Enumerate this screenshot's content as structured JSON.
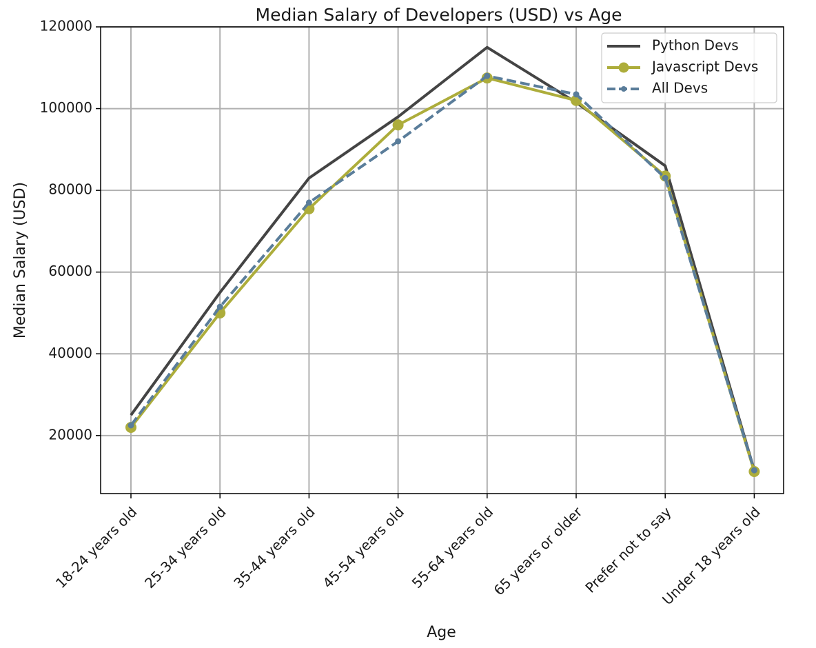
{
  "chart_data": {
    "type": "line",
    "title": "Median Salary of Developers (USD) vs Age",
    "xlabel": "Age",
    "ylabel": "Median Salary (USD)",
    "categories": [
      "18-24 years old",
      "25-34 years old",
      "35-44 years old",
      "45-54 years old",
      "55-64 years old",
      "65 years or older",
      "Prefer not to say",
      "Under 18 years old"
    ],
    "ylim": [
      5800,
      120000
    ],
    "yticks": [
      20000,
      40000,
      60000,
      80000,
      100000,
      120000
    ],
    "grid": true,
    "legend_position": "top-right",
    "series": [
      {
        "name": "Python Devs",
        "values": [
          25000,
          55000,
          83000,
          98000,
          115000,
          101500,
          86000,
          11500
        ],
        "color": "#444444",
        "style": "solid",
        "marker": "none"
      },
      {
        "name": "Javascript Devs",
        "values": [
          22000,
          50000,
          75500,
          96000,
          107500,
          102000,
          83500,
          11200
        ],
        "color": "#adad3b",
        "style": "solid",
        "marker": "circle"
      },
      {
        "name": "All Devs",
        "values": [
          22500,
          51500,
          77000,
          92000,
          108000,
          103500,
          83000,
          11500
        ],
        "color": "#5a7d9a",
        "style": "dashed",
        "marker": "dot"
      }
    ]
  }
}
